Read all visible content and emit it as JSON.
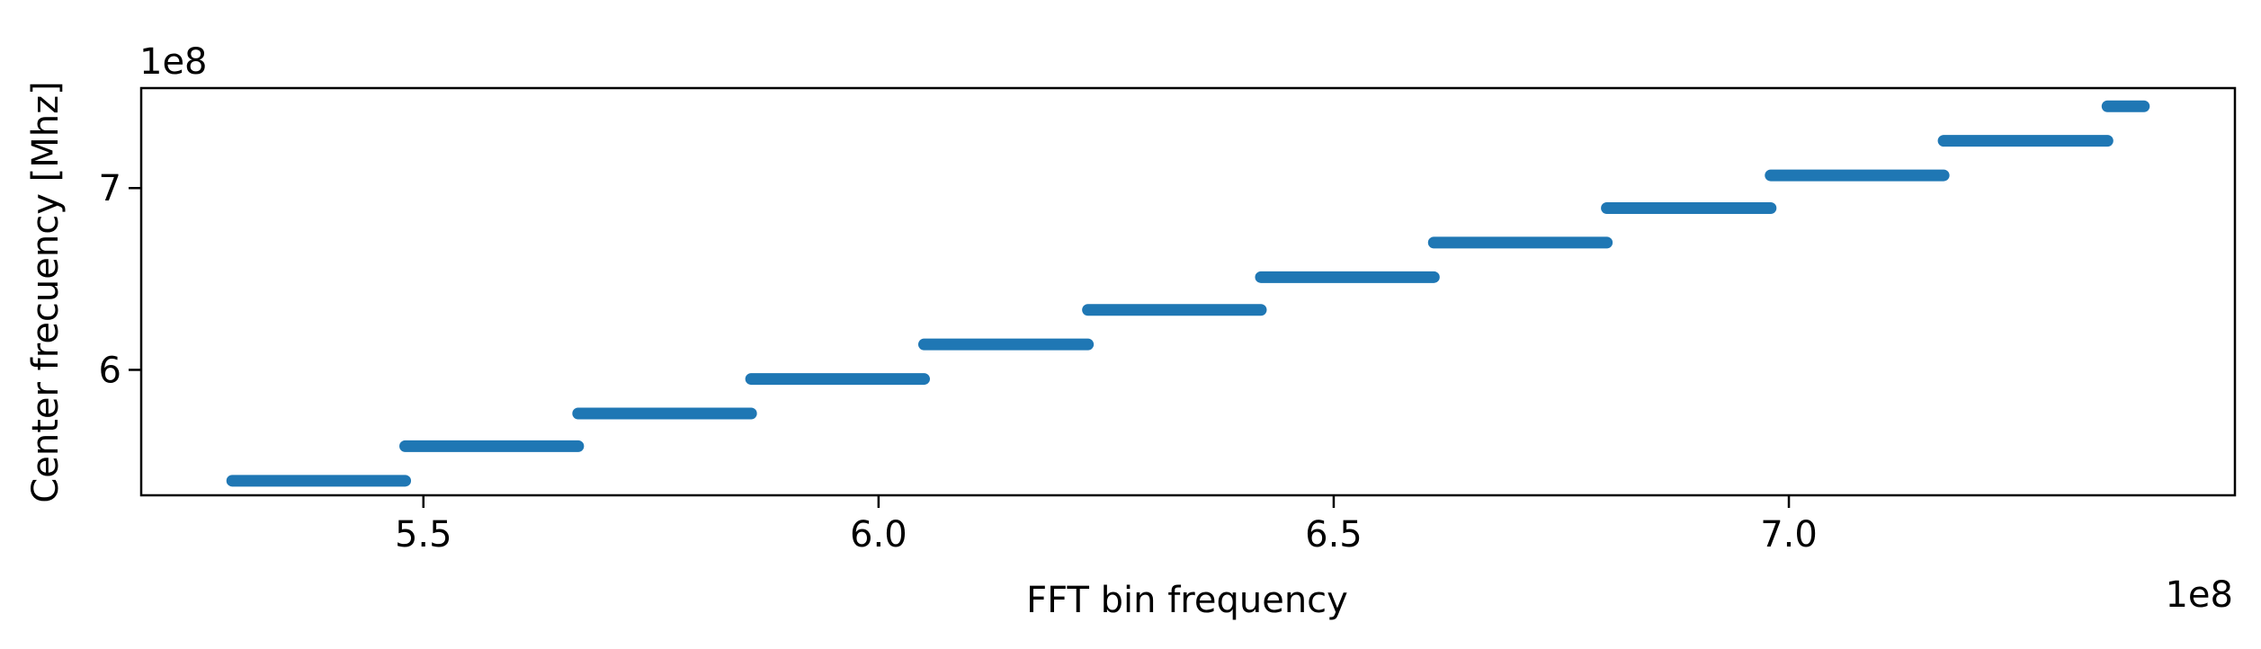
{
  "chart_data": {
    "type": "scatter",
    "title": "",
    "xlabel": "FFT bin frequency",
    "ylabel": "Center frecuency [Mhz]",
    "x_offset_text": "1e8",
    "y_offset_text": "1e8",
    "xlim": [
      5.19,
      7.49
    ],
    "ylim": [
      5.31,
      7.55
    ],
    "x_ticks": [
      5.5,
      6.0,
      6.5,
      7.0
    ],
    "x_tick_labels": [
      "5.5",
      "6.0",
      "6.5",
      "7.0"
    ],
    "y_ticks": [
      6,
      7
    ],
    "y_tick_labels": [
      "6",
      "7"
    ],
    "grid": false,
    "color": "#1f77b4",
    "series": [
      {
        "segments": [
          {
            "x_start": 5.29,
            "x_end": 5.48,
            "y": 5.39
          },
          {
            "x_start": 5.48,
            "x_end": 5.67,
            "y": 5.58
          },
          {
            "x_start": 5.67,
            "x_end": 5.86,
            "y": 5.76
          },
          {
            "x_start": 5.86,
            "x_end": 6.05,
            "y": 5.95
          },
          {
            "x_start": 6.05,
            "x_end": 6.23,
            "y": 6.14
          },
          {
            "x_start": 6.23,
            "x_end": 6.42,
            "y": 6.33
          },
          {
            "x_start": 6.42,
            "x_end": 6.61,
            "y": 6.51
          },
          {
            "x_start": 6.61,
            "x_end": 6.8,
            "y": 6.7
          },
          {
            "x_start": 6.8,
            "x_end": 6.98,
            "y": 6.89
          },
          {
            "x_start": 6.98,
            "x_end": 7.17,
            "y": 7.07
          },
          {
            "x_start": 7.17,
            "x_end": 7.35,
            "y": 7.26
          },
          {
            "x_start": 7.35,
            "x_end": 7.39,
            "y": 7.45
          }
        ]
      }
    ]
  }
}
